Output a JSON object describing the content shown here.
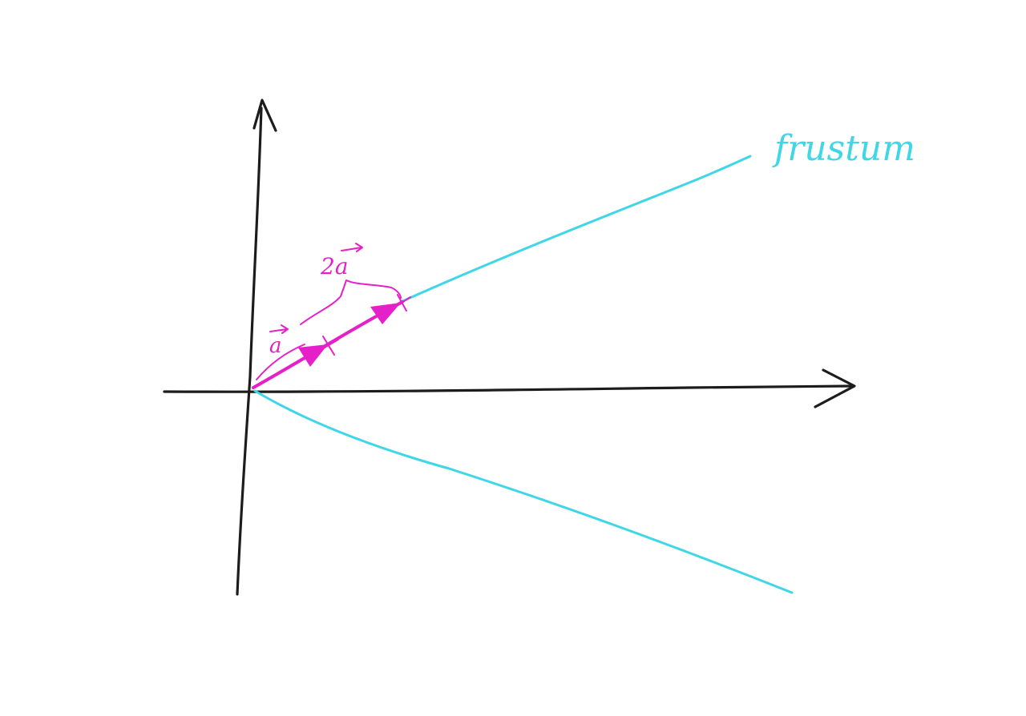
{
  "colors": {
    "background": "#ffffff",
    "axis": "#1c1c1c",
    "frustum": "#3fd6e8",
    "vector": "#e620c8"
  },
  "labels": {
    "frustum": "frustum",
    "vector_a": "a",
    "vector_2a": "2a"
  }
}
